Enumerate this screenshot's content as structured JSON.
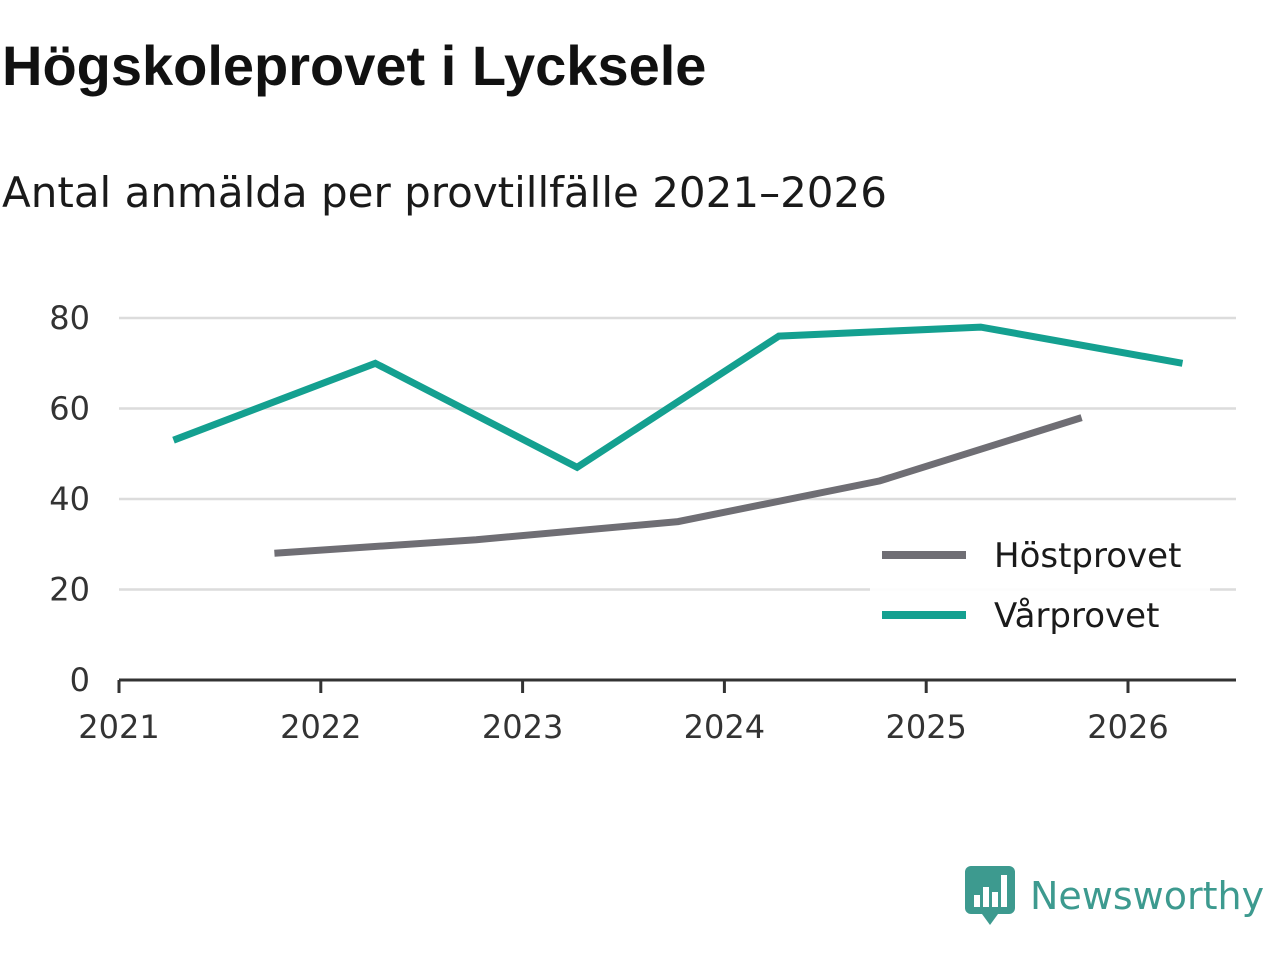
{
  "page": {
    "title": "Högskoleprovet i Lycksele",
    "subtitle": "Antal anmälda per provtillfälle 2021–2026"
  },
  "brand": {
    "name": "Newsworthy",
    "logo_icon": "newsworthy-logo-icon",
    "color": "#3d9a8f"
  },
  "chart_data": {
    "type": "line",
    "title": "Högskoleprovet i Lycksele",
    "subtitle": "Antal anmälda per provtillfälle 2021–2026",
    "xlabel": "",
    "ylabel": "",
    "xlim": [
      2021,
      2026.5
    ],
    "ylim": [
      0,
      80
    ],
    "x_ticks": [
      "2021",
      "2022",
      "2023",
      "2024",
      "2025",
      "2026"
    ],
    "y_ticks": [
      "0",
      "20",
      "40",
      "60",
      "80"
    ],
    "grid": true,
    "legend_position": "bottom-right",
    "series": [
      {
        "name": "Höstprovet",
        "color": "#6f6e74",
        "x": [
          2021.77,
          2022.77,
          2023.77,
          2024.77,
          2025.77
        ],
        "values": [
          28,
          31,
          35,
          44,
          58
        ]
      },
      {
        "name": "Vårprovet",
        "color": "#14a090",
        "x": [
          2021.27,
          2022.27,
          2023.27,
          2024.27,
          2025.27,
          2026.27
        ],
        "values": [
          53,
          70,
          47,
          76,
          78,
          70
        ]
      }
    ]
  }
}
